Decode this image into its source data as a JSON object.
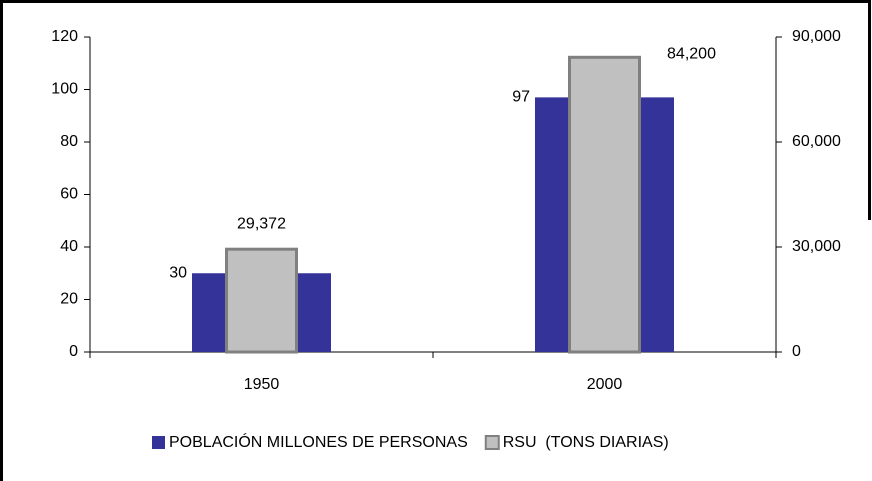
{
  "chart_data": {
    "type": "bar",
    "categories": [
      "1950",
      "2000"
    ],
    "series": [
      {
        "name": "POBLACIÓN MILLONES DE PERSONAS",
        "color": "#333399",
        "values": [
          30,
          97
        ]
      },
      {
        "name": "RSU  (TONS DIARIAS)",
        "color": "#c0c0c0",
        "axis": "y2",
        "values": [
          29372,
          84200
        ],
        "value_labels": [
          "29,372",
          "84,200"
        ]
      }
    ],
    "ylim": [
      0,
      120
    ],
    "yticks": [
      0,
      20,
      40,
      60,
      80,
      100,
      120
    ],
    "y2lim": [
      0,
      90000
    ],
    "y2ticks": [
      0,
      {
        "value": 30000,
        "label": "30,000"
      },
      {
        "value": 60000,
        "label": "60,000"
      },
      {
        "value": 90000,
        "label": "90,000"
      }
    ],
    "legend": "bottom"
  }
}
